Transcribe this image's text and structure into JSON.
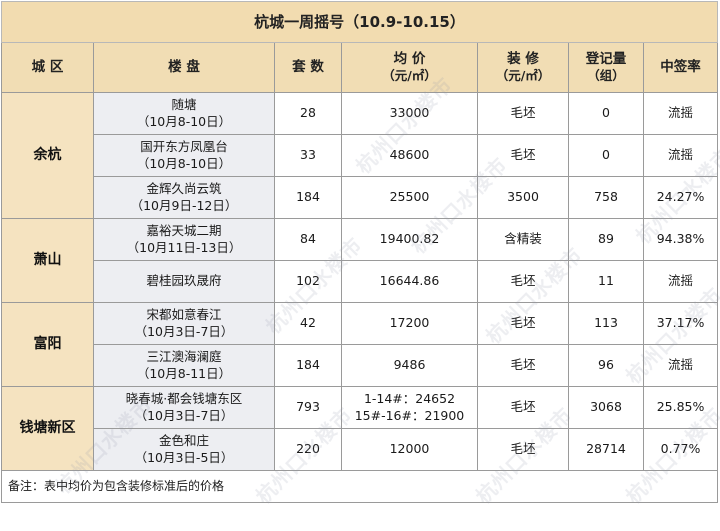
{
  "title": "杭城一周摇号（10.9-10.15）",
  "headers": {
    "district": "城 区",
    "project": "楼 盘",
    "units": "套 数",
    "price": "均 价",
    "price_unit": "（元/㎡）",
    "decoration": "装 修",
    "decoration_unit": "（元/㎡）",
    "registered": "登记量",
    "registered_unit": "（组）",
    "rate": "中签率"
  },
  "districts": [
    {
      "name": "余杭",
      "rows": [
        {
          "name": "随塘",
          "date": "（10月8-10日）",
          "units": "28",
          "price": "33000",
          "decoration": "毛坯",
          "registered": "0",
          "rate": "流摇"
        },
        {
          "name": "国开东方凤凰台",
          "date": "（10月8-10日）",
          "units": "33",
          "price": "48600",
          "decoration": "毛坯",
          "registered": "0",
          "rate": "流摇"
        },
        {
          "name": "金辉久尚云筑",
          "date": "（10月9日-12日）",
          "units": "184",
          "price": "25500",
          "decoration": "3500",
          "registered": "758",
          "rate": "24.27%"
        }
      ]
    },
    {
      "name": "萧山",
      "rows": [
        {
          "name": "嘉裕天城二期",
          "date": "（10月11日-13日）",
          "units": "84",
          "price": "19400.82",
          "decoration": "含精装",
          "registered": "89",
          "rate": "94.38%"
        },
        {
          "name": "碧桂园玖晟府",
          "date": "",
          "units": "102",
          "price": "16644.86",
          "decoration": "毛坯",
          "registered": "11",
          "rate": "流摇"
        }
      ]
    },
    {
      "name": "富阳",
      "rows": [
        {
          "name": "宋都如意春江",
          "date": "（10月3日-7日）",
          "units": "42",
          "price": "17200",
          "decoration": "毛坯",
          "registered": "113",
          "rate": "37.17%"
        },
        {
          "name": "三江澳海澜庭",
          "date": "（10月8-11日）",
          "units": "184",
          "price": "9486",
          "decoration": "毛坯",
          "registered": "96",
          "rate": "流摇"
        }
      ]
    },
    {
      "name": "钱塘新区",
      "rows": [
        {
          "name": "晓春城·都会钱塘东区",
          "date": "（10月3日-7日）",
          "units": "793",
          "price": "1-14#：24652",
          "price2": "15#-16#：21900",
          "decoration": "毛坯",
          "registered": "3068",
          "rate": "25.85%"
        },
        {
          "name": "金色和庄",
          "date": "（10月3日-5日）",
          "units": "220",
          "price": "12000",
          "decoration": "毛坯",
          "registered": "28714",
          "rate": "0.77%"
        }
      ]
    }
  ],
  "note": "备注：表中均价为包含装修标准后的价格",
  "watermark": "杭州口水楼市"
}
